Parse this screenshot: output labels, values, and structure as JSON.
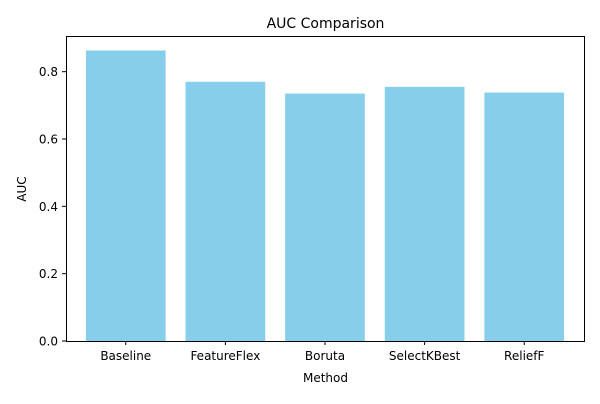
{
  "chart_data": {
    "type": "bar",
    "title": "AUC Comparison",
    "xlabel": "Method",
    "ylabel": "AUC",
    "categories": [
      "Baseline",
      "FeatureFlex",
      "Boruta",
      "SelectKBest",
      "ReliefF"
    ],
    "values": [
      0.863,
      0.77,
      0.735,
      0.755,
      0.738
    ],
    "ylim": [
      0,
      0.906
    ],
    "yticks": [
      0.0,
      0.2,
      0.4,
      0.6,
      0.8
    ],
    "ytick_labels": [
      "0.0",
      "0.2",
      "0.4",
      "0.6",
      "0.8"
    ],
    "grid": false,
    "legend": "none",
    "bar_color": "#87CEEB",
    "axis_color": "#000000"
  }
}
